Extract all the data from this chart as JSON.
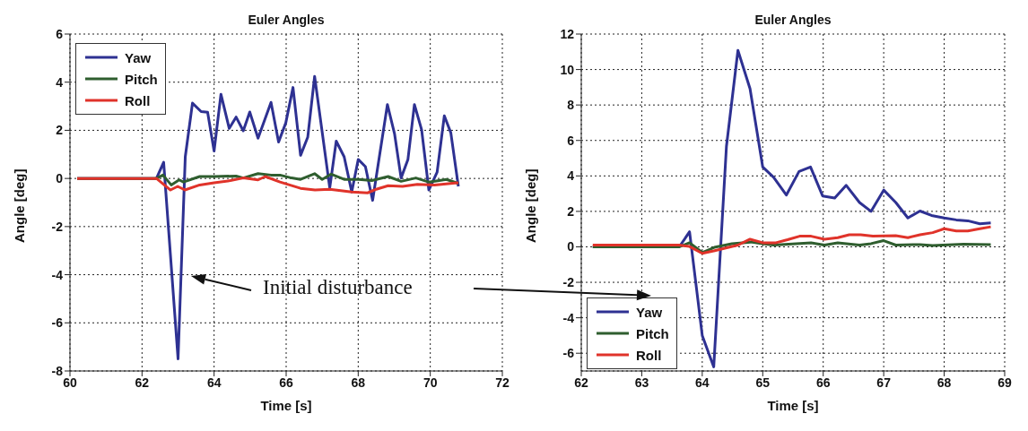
{
  "chart_data": [
    {
      "type": "line",
      "title": "Euler Angles",
      "xlabel": "Time [s]",
      "ylabel": "Angle [deg]",
      "xlim": [
        60,
        72
      ],
      "xticks": [
        60,
        62,
        64,
        66,
        68,
        70,
        72
      ],
      "ylim": [
        -8,
        6
      ],
      "yticks": [
        -8,
        -6,
        -4,
        -2,
        0,
        2,
        4,
        6
      ],
      "grid": true,
      "legend": "top left",
      "annotations": [
        "Initial disturbance"
      ],
      "series": [
        {
          "name": "Yaw",
          "color": "#2e3192",
          "x": [
            60.2,
            62.4,
            62.6,
            63.0,
            63.2,
            63.4,
            63.64,
            63.82,
            64.0,
            64.19,
            64.42,
            64.61,
            64.81,
            64.99,
            65.22,
            65.58,
            65.79,
            65.99,
            66.19,
            66.4,
            66.6,
            66.79,
            67.21,
            67.39,
            67.61,
            67.82,
            68.0,
            68.2,
            68.4,
            68.81,
            69.01,
            69.19,
            69.38,
            69.56,
            69.76,
            69.96,
            70.19,
            70.39,
            70.57,
            70.78
          ],
          "values": [
            0,
            0,
            0.67,
            -7.5,
            0.9,
            3.13,
            2.78,
            2.75,
            1.14,
            3.5,
            2.08,
            2.55,
            1.98,
            2.76,
            1.67,
            3.16,
            1.51,
            2.31,
            3.78,
            0.96,
            1.72,
            4.24,
            -0.39,
            1.55,
            0.9,
            -0.56,
            0.79,
            0.49,
            -0.91,
            3.07,
            1.84,
            0.02,
            0.79,
            3.07,
            2.02,
            -0.48,
            0.26,
            2.6,
            1.9,
            -0.33
          ]
        },
        {
          "name": "Pitch",
          "color": "#2f5e2f",
          "x": [
            60.2,
            62.4,
            62.58,
            62.81,
            63.03,
            63.15,
            63.6,
            64.0,
            64.61,
            64.81,
            65.22,
            65.58,
            65.83,
            66.15,
            66.4,
            66.79,
            67.0,
            67.25,
            67.61,
            68.02,
            68.38,
            68.83,
            69.19,
            69.6,
            69.96,
            70.45,
            70.78
          ],
          "values": [
            0,
            0,
            0.14,
            -0.27,
            -0.06,
            -0.15,
            0.08,
            0.08,
            0.1,
            0.02,
            0.2,
            0.14,
            0.14,
            0.02,
            -0.04,
            0.2,
            -0.04,
            0.18,
            -0.04,
            -0.04,
            -0.09,
            0.08,
            -0.12,
            0.02,
            -0.15,
            -0.04,
            -0.21
          ]
        },
        {
          "name": "Roll",
          "color": "#e0332a",
          "x": [
            60.2,
            62.4,
            62.79,
            62.99,
            63.19,
            63.6,
            64.0,
            64.45,
            64.81,
            65.22,
            65.42,
            65.83,
            66.4,
            66.8,
            67.21,
            67.82,
            68.26,
            68.5,
            68.83,
            69.23,
            69.64,
            70.12,
            70.78
          ],
          "values": [
            0,
            0,
            -0.48,
            -0.33,
            -0.48,
            -0.27,
            -0.18,
            -0.09,
            0.02,
            -0.06,
            0.08,
            -0.15,
            -0.41,
            -0.48,
            -0.45,
            -0.56,
            -0.6,
            -0.45,
            -0.3,
            -0.33,
            -0.25,
            -0.27,
            -0.18
          ]
        }
      ]
    },
    {
      "type": "line",
      "title": "Euler Angles",
      "xlabel": "Time [s]",
      "ylabel": "Angle [deg]",
      "xlim": [
        62,
        69
      ],
      "xticks": [
        62,
        63,
        64,
        65,
        66,
        67,
        68,
        69
      ],
      "ylim": [
        -7,
        12
      ],
      "yticks": [
        -6,
        -4,
        -2,
        0,
        2,
        4,
        6,
        8,
        10,
        12
      ],
      "grid": true,
      "legend": "bottom left",
      "series": [
        {
          "name": "Yaw",
          "color": "#2e3192",
          "x": [
            62.19,
            63.62,
            63.79,
            64.0,
            64.19,
            64.4,
            64.59,
            64.79,
            65.0,
            65.18,
            65.39,
            65.6,
            65.79,
            65.99,
            66.19,
            66.38,
            66.6,
            66.79,
            67.0,
            67.2,
            67.4,
            67.6,
            67.79,
            68.0,
            68.2,
            68.39,
            68.59,
            68.77
          ],
          "values": [
            0,
            0,
            0.85,
            -5.0,
            -6.77,
            5.67,
            11.08,
            8.92,
            4.5,
            3.92,
            2.92,
            4.25,
            4.5,
            2.87,
            2.75,
            3.47,
            2.5,
            2.0,
            3.2,
            2.5,
            1.63,
            2.02,
            1.77,
            1.63,
            1.52,
            1.47,
            1.3,
            1.35
          ]
        },
        {
          "name": "Pitch",
          "color": "#2f5e2f",
          "x": [
            62.19,
            63.62,
            63.79,
            64.0,
            64.2,
            64.49,
            64.8,
            65.0,
            65.18,
            65.8,
            66.02,
            66.24,
            66.6,
            66.79,
            67.0,
            67.2,
            67.6,
            67.81,
            68.32,
            68.77
          ],
          "values": [
            0,
            0,
            0.23,
            -0.32,
            -0.03,
            0.18,
            0.27,
            0.18,
            0.1,
            0.23,
            0.1,
            0.23,
            0.1,
            0.18,
            0.35,
            0.1,
            0.13,
            0.07,
            0.15,
            0.13
          ]
        },
        {
          "name": "Roll",
          "color": "#e0332a",
          "x": [
            62.19,
            63.62,
            63.79,
            64.0,
            64.19,
            64.59,
            64.79,
            65.0,
            65.22,
            65.41,
            65.61,
            65.8,
            66.02,
            66.24,
            66.43,
            66.62,
            66.82,
            67.2,
            67.4,
            67.6,
            67.81,
            68.0,
            68.2,
            68.39,
            68.59,
            68.77
          ],
          "values": [
            0.1,
            0.1,
            0.02,
            -0.37,
            -0.23,
            0.1,
            0.43,
            0.23,
            0.23,
            0.4,
            0.6,
            0.6,
            0.43,
            0.52,
            0.68,
            0.68,
            0.6,
            0.63,
            0.52,
            0.68,
            0.8,
            1.02,
            0.9,
            0.9,
            1.02,
            1.13
          ]
        }
      ]
    }
  ]
}
